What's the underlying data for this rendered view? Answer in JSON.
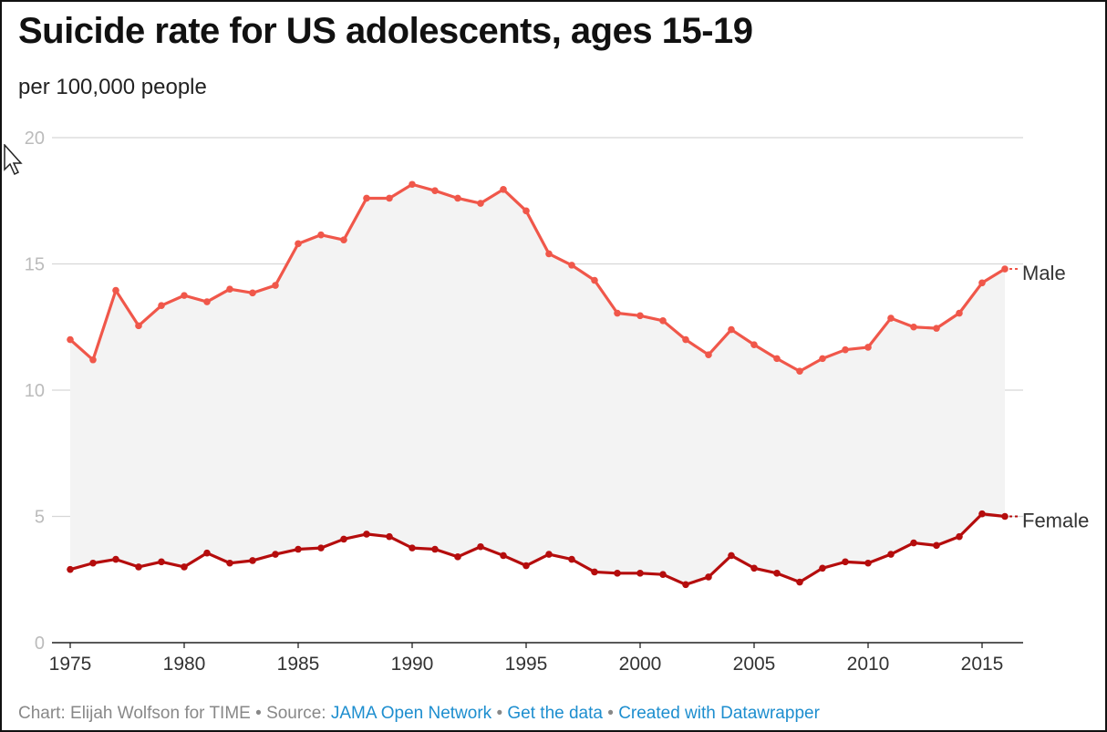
{
  "title": "Suicide rate for US adolescents, ages 15-19",
  "subtitle": "per 100,000 people",
  "footer": {
    "chart_credit": "Chart: Elijah Wolfson for TIME",
    "source_prefix": "Source:",
    "source_link": "JAMA Open Network",
    "get_data": "Get the data",
    "created_with": "Created with Datawrapper",
    "bullet": "•"
  },
  "colors": {
    "male": "#f0574a",
    "female": "#b50d0d",
    "area_fill": "#f3f3f3",
    "grid": "#d7d7d7",
    "axis": "#222222",
    "tick_label": "#bbbbbb",
    "x_tick_label": "#333333",
    "link": "#1d8ecf"
  },
  "chart_data": {
    "type": "line",
    "x": [
      1975,
      1976,
      1977,
      1978,
      1979,
      1980,
      1981,
      1982,
      1983,
      1984,
      1985,
      1986,
      1987,
      1988,
      1989,
      1990,
      1991,
      1992,
      1993,
      1994,
      1995,
      1996,
      1997,
      1998,
      1999,
      2000,
      2001,
      2002,
      2003,
      2004,
      2005,
      2006,
      2007,
      2008,
      2009,
      2010,
      2011,
      2012,
      2013,
      2014,
      2015,
      2016
    ],
    "series": [
      {
        "name": "Male",
        "values": [
          12.0,
          11.2,
          13.95,
          12.55,
          13.35,
          13.75,
          13.5,
          14.0,
          13.85,
          14.15,
          15.8,
          16.15,
          15.95,
          17.6,
          17.6,
          18.15,
          17.9,
          17.6,
          17.4,
          17.95,
          17.1,
          15.4,
          14.95,
          14.35,
          13.05,
          12.95,
          12.75,
          12.0,
          11.4,
          12.4,
          11.8,
          11.25,
          10.75,
          11.25,
          11.6,
          11.7,
          12.85,
          12.5,
          12.45,
          13.05,
          14.25,
          14.8
        ]
      },
      {
        "name": "Female",
        "values": [
          2.9,
          3.15,
          3.3,
          3.0,
          3.2,
          3.0,
          3.55,
          3.15,
          3.25,
          3.5,
          3.7,
          3.75,
          4.1,
          4.3,
          4.2,
          3.75,
          3.7,
          3.4,
          3.8,
          3.45,
          3.05,
          3.5,
          3.3,
          2.8,
          2.75,
          2.75,
          2.7,
          2.3,
          2.6,
          3.45,
          2.95,
          2.75,
          2.4,
          2.95,
          3.2,
          3.15,
          3.5,
          3.95,
          3.85,
          4.2,
          5.1,
          5.0
        ]
      }
    ],
    "xticks": [
      "1975",
      "1980",
      "1985",
      "1990",
      "1995",
      "2000",
      "2005",
      "2010",
      "2015"
    ],
    "yticks": [
      "0",
      "5",
      "10",
      "15",
      "20"
    ],
    "ylim": [
      0,
      20
    ],
    "xlim": [
      1975,
      2016
    ],
    "grid": true,
    "legend": "direct labels at line ends"
  }
}
